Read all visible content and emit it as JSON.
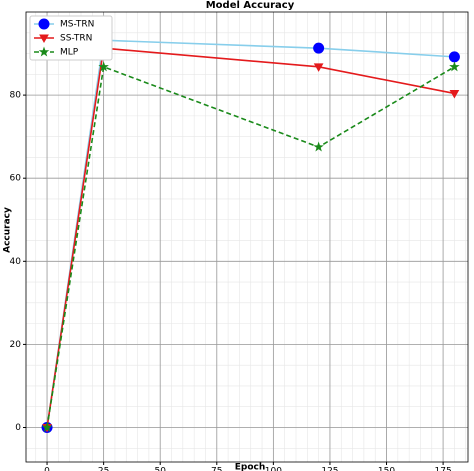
{
  "chart_data": {
    "type": "line",
    "title": "Model Accuracy",
    "x_label": "Epoch",
    "y_label": "Accuracy",
    "x": [
      0,
      25,
      120,
      180
    ],
    "series": [
      {
        "name": "MS-TRN",
        "color": "#87ceeb",
        "marker_color": "#0000ff",
        "marker": "circle",
        "linestyle": "solid",
        "values": [
          0,
          93.2,
          91.3,
          89.2
        ]
      },
      {
        "name": "SS-TRN",
        "color": "#e41a1c",
        "marker_color": "#e41a1c",
        "marker": "triangle-down",
        "linestyle": "solid",
        "values": [
          0,
          91.3,
          86.8,
          80.4
        ]
      },
      {
        "name": "MLP",
        "color": "#1a8a1a",
        "marker_color": "#1a8a1a",
        "marker": "star",
        "linestyle": "dashed",
        "values": [
          0,
          86.8,
          67.5,
          86.8
        ]
      }
    ],
    "xlim": [
      -9.3,
      186
    ],
    "ylim": [
      -8.3,
      100
    ],
    "xticks": [
      0,
      25,
      50,
      75,
      100,
      125,
      150,
      175
    ],
    "yticks": [
      0,
      20,
      40,
      60,
      80
    ],
    "grid": true,
    "minor_grid": true,
    "legend": "upper-left"
  }
}
